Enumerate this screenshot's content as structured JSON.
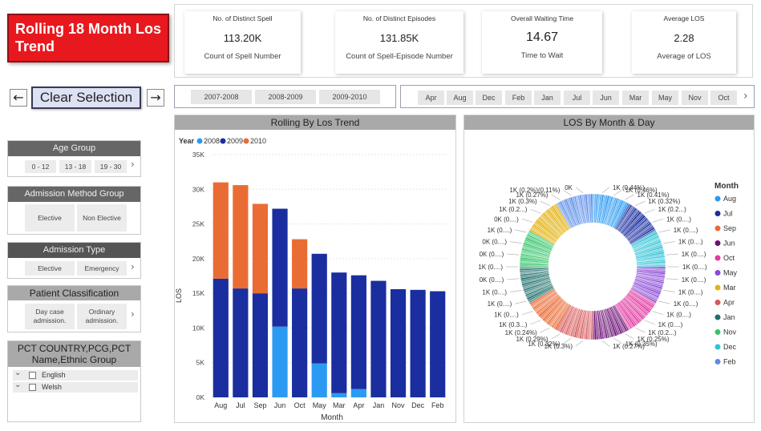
{
  "title": "Rolling 18 Month Los Trend",
  "kpis": [
    {
      "title": "No. of Distinct Spell",
      "value": "113.20K",
      "subtitle": "Count of Spell Number"
    },
    {
      "title": "No. of Distinct Episodes",
      "value": "131.85K",
      "subtitle": "Count of Spell-Episode Number"
    },
    {
      "title": "Overall Waiting Time",
      "value": "14.67",
      "subtitle": "Time to Wait"
    },
    {
      "title": "Average LOS",
      "value": "2.28",
      "subtitle": "Average of LOS"
    }
  ],
  "nav": {
    "back_icon": "←",
    "forward_icon": "→",
    "clear_label": "Clear Selection"
  },
  "year_slicer": [
    "2007-2008",
    "2008-2009",
    "2009-2010"
  ],
  "month_slicer": [
    "Apr",
    "Aug",
    "Dec",
    "Feb",
    "Jan",
    "Jul",
    "Jun",
    "Mar",
    "May",
    "Nov",
    "Oct"
  ],
  "filters": {
    "age_group": {
      "title": "Age Group",
      "options": [
        "0 - 12",
        "13 - 18",
        "19 - 30"
      ]
    },
    "admission_method": {
      "title": "Admission Method Group",
      "options": [
        "Elective",
        "Non Elective"
      ]
    },
    "admission_type": {
      "title": "Admission Type",
      "options": [
        "Elective",
        "Emergency"
      ]
    },
    "patient_classification": {
      "title": "Patient Classification",
      "options": [
        "Day case admission.",
        "Ordinary admission."
      ]
    },
    "pct": {
      "title": "PCT COUNTRY,PCG,PCT Name,Ethnic Group",
      "items": [
        "English",
        "Welsh"
      ]
    }
  },
  "colors": {
    "y2008": "#2b9af3",
    "y2009": "#1a2ea0",
    "y2010": "#ea6c35",
    "title_red": "#e8191e"
  },
  "chart_data": [
    {
      "type": "bar",
      "title": "Rolling By Los Trend",
      "xlabel": "Month",
      "ylabel": "LOS",
      "legend_title": "Year",
      "legend_position": "top-left",
      "categories": [
        "Aug",
        "Jul",
        "Sep",
        "Jun",
        "Oct",
        "May",
        "Mar",
        "Apr",
        "Jan",
        "Nov",
        "Dec",
        "Feb"
      ],
      "ylim": [
        0,
        35000
      ],
      "yticks": [
        "0K",
        "5K",
        "10K",
        "15K",
        "20K",
        "25K",
        "30K",
        "35K"
      ],
      "series": [
        {
          "name": "2008",
          "values": [
            0,
            0,
            0,
            10200,
            0,
            4900,
            600,
            1200,
            0,
            0,
            0,
            0
          ]
        },
        {
          "name": "2009",
          "values": [
            17100,
            15700,
            15000,
            17000,
            15700,
            15800,
            17400,
            16400,
            16800,
            15600,
            15500,
            15300
          ]
        },
        {
          "name": "2010",
          "values": [
            13900,
            14900,
            12900,
            0,
            7100,
            0,
            0,
            0,
            0,
            0,
            0,
            0
          ]
        }
      ]
    },
    {
      "type": "pie",
      "title": "LOS By Month & Day",
      "legend_title": "Month",
      "legend_position": "right",
      "legend": [
        {
          "label": "Aug",
          "color": "#2b9af3"
        },
        {
          "label": "Jul",
          "color": "#1a2ea0"
        },
        {
          "label": "Sep",
          "color": "#ea6c35"
        },
        {
          "label": "Jun",
          "color": "#6b0f73"
        },
        {
          "label": "Oct",
          "color": "#e23aa2"
        },
        {
          "label": "May",
          "color": "#8a4ad6"
        },
        {
          "label": "Mar",
          "color": "#e3b314"
        },
        {
          "label": "Apr",
          "color": "#d65a5a"
        },
        {
          "label": "Jan",
          "color": "#1f6f6a"
        },
        {
          "label": "Nov",
          "color": "#36c46a"
        },
        {
          "label": "Dec",
          "color": "#2fc3d6"
        },
        {
          "label": "Feb",
          "color": "#5b8de8"
        }
      ],
      "labels_right": [
        "1K (0.44%)",
        "1K (0.46%)",
        "1K (0.41%)",
        "1K (0.32%)",
        "1K (0.2...)",
        "1K (0....)",
        "1K (0....)",
        "1K (0....)",
        "1K (0....)",
        "1K (0....)",
        "1K (0....)",
        "1K (0....)",
        "1K (0....)",
        "1K (0....)",
        "1K (0....)",
        "1K (0.2...)",
        "1K (0.25%)",
        "1K (0.35%)",
        "1K (0.27%)"
      ],
      "labels_left": [
        "0K",
        "1K (0.2%)(0.11%)",
        "1K (0.27%)",
        "1K (0.3%)",
        "1K (0.2...)",
        "0K (0....)",
        "1K (0....)",
        "0K (0....)",
        "0K (0....)",
        "1K (0....)",
        "0K (0....)",
        "1K (0....)",
        "1K (0....)",
        "1K (0....)",
        "1K (0.3...)",
        "1K (0.24%)",
        "1K (0.29%)",
        "1K (0.32%)",
        "1K (0.3%)"
      ]
    }
  ]
}
